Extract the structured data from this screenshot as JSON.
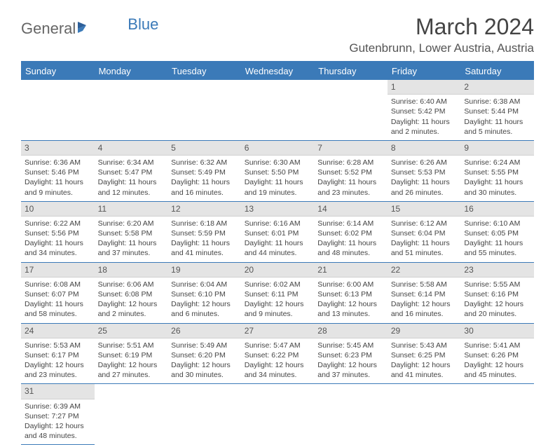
{
  "logo": {
    "part1": "General",
    "part2": "Blue"
  },
  "title": "March 2024",
  "location": "Gutenbrunn, Lower Austria, Austria",
  "dayHeaders": [
    "Sunday",
    "Monday",
    "Tuesday",
    "Wednesday",
    "Thursday",
    "Friday",
    "Saturday"
  ],
  "colors": {
    "headerBg": "#3b7ab8",
    "headerText": "#ffffff",
    "dayNumBg": "#e4e4e4",
    "borderBlue": "#3b7ab8",
    "textColor": "#444444"
  },
  "weeks": [
    [
      null,
      null,
      null,
      null,
      null,
      {
        "num": "1",
        "sunrise": "Sunrise: 6:40 AM",
        "sunset": "Sunset: 5:42 PM",
        "daylight1": "Daylight: 11 hours",
        "daylight2": "and 2 minutes."
      },
      {
        "num": "2",
        "sunrise": "Sunrise: 6:38 AM",
        "sunset": "Sunset: 5:44 PM",
        "daylight1": "Daylight: 11 hours",
        "daylight2": "and 5 minutes."
      }
    ],
    [
      {
        "num": "3",
        "sunrise": "Sunrise: 6:36 AM",
        "sunset": "Sunset: 5:46 PM",
        "daylight1": "Daylight: 11 hours",
        "daylight2": "and 9 minutes."
      },
      {
        "num": "4",
        "sunrise": "Sunrise: 6:34 AM",
        "sunset": "Sunset: 5:47 PM",
        "daylight1": "Daylight: 11 hours",
        "daylight2": "and 12 minutes."
      },
      {
        "num": "5",
        "sunrise": "Sunrise: 6:32 AM",
        "sunset": "Sunset: 5:49 PM",
        "daylight1": "Daylight: 11 hours",
        "daylight2": "and 16 minutes."
      },
      {
        "num": "6",
        "sunrise": "Sunrise: 6:30 AM",
        "sunset": "Sunset: 5:50 PM",
        "daylight1": "Daylight: 11 hours",
        "daylight2": "and 19 minutes."
      },
      {
        "num": "7",
        "sunrise": "Sunrise: 6:28 AM",
        "sunset": "Sunset: 5:52 PM",
        "daylight1": "Daylight: 11 hours",
        "daylight2": "and 23 minutes."
      },
      {
        "num": "8",
        "sunrise": "Sunrise: 6:26 AM",
        "sunset": "Sunset: 5:53 PM",
        "daylight1": "Daylight: 11 hours",
        "daylight2": "and 26 minutes."
      },
      {
        "num": "9",
        "sunrise": "Sunrise: 6:24 AM",
        "sunset": "Sunset: 5:55 PM",
        "daylight1": "Daylight: 11 hours",
        "daylight2": "and 30 minutes."
      }
    ],
    [
      {
        "num": "10",
        "sunrise": "Sunrise: 6:22 AM",
        "sunset": "Sunset: 5:56 PM",
        "daylight1": "Daylight: 11 hours",
        "daylight2": "and 34 minutes."
      },
      {
        "num": "11",
        "sunrise": "Sunrise: 6:20 AM",
        "sunset": "Sunset: 5:58 PM",
        "daylight1": "Daylight: 11 hours",
        "daylight2": "and 37 minutes."
      },
      {
        "num": "12",
        "sunrise": "Sunrise: 6:18 AM",
        "sunset": "Sunset: 5:59 PM",
        "daylight1": "Daylight: 11 hours",
        "daylight2": "and 41 minutes."
      },
      {
        "num": "13",
        "sunrise": "Sunrise: 6:16 AM",
        "sunset": "Sunset: 6:01 PM",
        "daylight1": "Daylight: 11 hours",
        "daylight2": "and 44 minutes."
      },
      {
        "num": "14",
        "sunrise": "Sunrise: 6:14 AM",
        "sunset": "Sunset: 6:02 PM",
        "daylight1": "Daylight: 11 hours",
        "daylight2": "and 48 minutes."
      },
      {
        "num": "15",
        "sunrise": "Sunrise: 6:12 AM",
        "sunset": "Sunset: 6:04 PM",
        "daylight1": "Daylight: 11 hours",
        "daylight2": "and 51 minutes."
      },
      {
        "num": "16",
        "sunrise": "Sunrise: 6:10 AM",
        "sunset": "Sunset: 6:05 PM",
        "daylight1": "Daylight: 11 hours",
        "daylight2": "and 55 minutes."
      }
    ],
    [
      {
        "num": "17",
        "sunrise": "Sunrise: 6:08 AM",
        "sunset": "Sunset: 6:07 PM",
        "daylight1": "Daylight: 11 hours",
        "daylight2": "and 58 minutes."
      },
      {
        "num": "18",
        "sunrise": "Sunrise: 6:06 AM",
        "sunset": "Sunset: 6:08 PM",
        "daylight1": "Daylight: 12 hours",
        "daylight2": "and 2 minutes."
      },
      {
        "num": "19",
        "sunrise": "Sunrise: 6:04 AM",
        "sunset": "Sunset: 6:10 PM",
        "daylight1": "Daylight: 12 hours",
        "daylight2": "and 6 minutes."
      },
      {
        "num": "20",
        "sunrise": "Sunrise: 6:02 AM",
        "sunset": "Sunset: 6:11 PM",
        "daylight1": "Daylight: 12 hours",
        "daylight2": "and 9 minutes."
      },
      {
        "num": "21",
        "sunrise": "Sunrise: 6:00 AM",
        "sunset": "Sunset: 6:13 PM",
        "daylight1": "Daylight: 12 hours",
        "daylight2": "and 13 minutes."
      },
      {
        "num": "22",
        "sunrise": "Sunrise: 5:58 AM",
        "sunset": "Sunset: 6:14 PM",
        "daylight1": "Daylight: 12 hours",
        "daylight2": "and 16 minutes."
      },
      {
        "num": "23",
        "sunrise": "Sunrise: 5:55 AM",
        "sunset": "Sunset: 6:16 PM",
        "daylight1": "Daylight: 12 hours",
        "daylight2": "and 20 minutes."
      }
    ],
    [
      {
        "num": "24",
        "sunrise": "Sunrise: 5:53 AM",
        "sunset": "Sunset: 6:17 PM",
        "daylight1": "Daylight: 12 hours",
        "daylight2": "and 23 minutes."
      },
      {
        "num": "25",
        "sunrise": "Sunrise: 5:51 AM",
        "sunset": "Sunset: 6:19 PM",
        "daylight1": "Daylight: 12 hours",
        "daylight2": "and 27 minutes."
      },
      {
        "num": "26",
        "sunrise": "Sunrise: 5:49 AM",
        "sunset": "Sunset: 6:20 PM",
        "daylight1": "Daylight: 12 hours",
        "daylight2": "and 30 minutes."
      },
      {
        "num": "27",
        "sunrise": "Sunrise: 5:47 AM",
        "sunset": "Sunset: 6:22 PM",
        "daylight1": "Daylight: 12 hours",
        "daylight2": "and 34 minutes."
      },
      {
        "num": "28",
        "sunrise": "Sunrise: 5:45 AM",
        "sunset": "Sunset: 6:23 PM",
        "daylight1": "Daylight: 12 hours",
        "daylight2": "and 37 minutes."
      },
      {
        "num": "29",
        "sunrise": "Sunrise: 5:43 AM",
        "sunset": "Sunset: 6:25 PM",
        "daylight1": "Daylight: 12 hours",
        "daylight2": "and 41 minutes."
      },
      {
        "num": "30",
        "sunrise": "Sunrise: 5:41 AM",
        "sunset": "Sunset: 6:26 PM",
        "daylight1": "Daylight: 12 hours",
        "daylight2": "and 45 minutes."
      }
    ],
    [
      {
        "num": "31",
        "sunrise": "Sunrise: 6:39 AM",
        "sunset": "Sunset: 7:27 PM",
        "daylight1": "Daylight: 12 hours",
        "daylight2": "and 48 minutes."
      },
      null,
      null,
      null,
      null,
      null,
      null
    ]
  ]
}
